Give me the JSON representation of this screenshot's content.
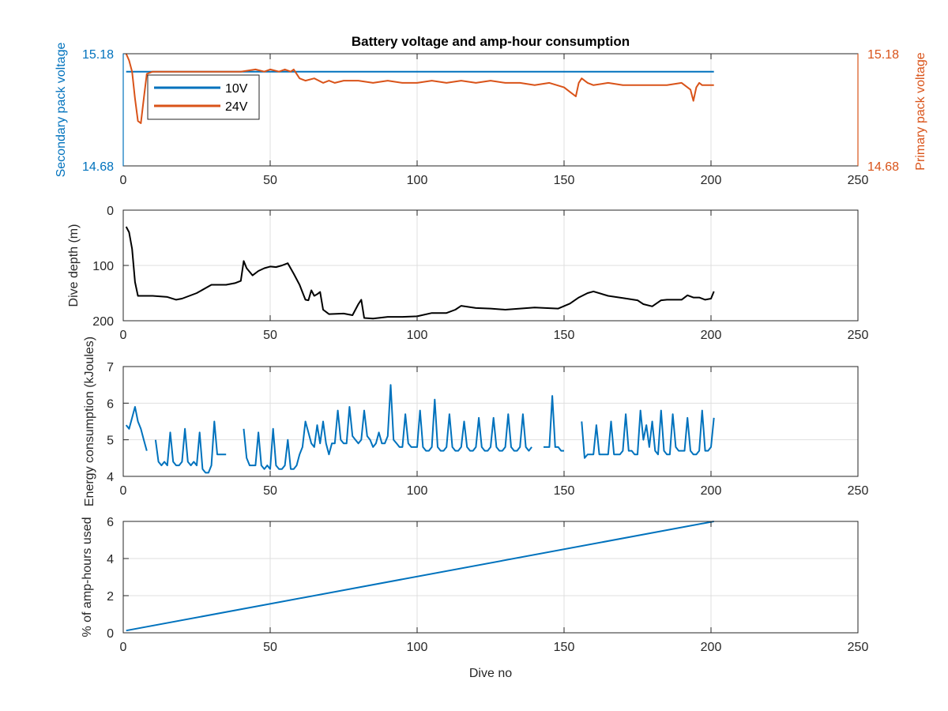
{
  "figure": {
    "title": "Battery voltage and amp-hour consumption",
    "colors": {
      "blue": "#0072BD",
      "orange": "#D95319",
      "black": "#000000",
      "grid": "#DFDFDF",
      "axis": "#262626"
    }
  },
  "chart_data": [
    {
      "id": "voltage",
      "type": "line",
      "title": "Battery voltage and amp-hour consumption",
      "xlim": [
        0,
        250
      ],
      "xticks": [
        0,
        50,
        100,
        150,
        200,
        250
      ],
      "ylim": [
        14.68,
        15.18
      ],
      "ylabel": "Secondary pack voltage",
      "yticks": [
        14.68,
        15.18
      ],
      "ylabel_right": "Primary pack voltage",
      "yticks_right": [
        14.68,
        15.18
      ],
      "legend": {
        "position": "top-left",
        "entries": [
          "10V",
          "24V"
        ]
      },
      "grid": true,
      "series": [
        {
          "name": "10V",
          "color": "#0072BD",
          "axis": "left",
          "x": [
            1,
            201
          ],
          "y": [
            15.1,
            15.1
          ]
        },
        {
          "name": "24V",
          "color": "#D95319",
          "axis": "right",
          "x": [
            1,
            2,
            3,
            4,
            5,
            6,
            7,
            8,
            10,
            15,
            20,
            25,
            30,
            35,
            40,
            45,
            48,
            50,
            53,
            55,
            57,
            58,
            60,
            62,
            65,
            68,
            70,
            72,
            75,
            80,
            85,
            90,
            95,
            100,
            105,
            110,
            115,
            120,
            125,
            130,
            135,
            140,
            145,
            150,
            152,
            154,
            155,
            156,
            158,
            160,
            165,
            170,
            175,
            180,
            185,
            190,
            193,
            194,
            195,
            196,
            197,
            200,
            201
          ],
          "y": [
            15.18,
            15.15,
            15.1,
            14.98,
            14.88,
            14.87,
            14.98,
            15.09,
            15.1,
            15.1,
            15.1,
            15.1,
            15.1,
            15.1,
            15.1,
            15.11,
            15.1,
            15.11,
            15.1,
            15.11,
            15.1,
            15.11,
            15.07,
            15.06,
            15.07,
            15.05,
            15.06,
            15.05,
            15.06,
            15.06,
            15.05,
            15.06,
            15.05,
            15.05,
            15.06,
            15.05,
            15.06,
            15.05,
            15.06,
            15.05,
            15.05,
            15.04,
            15.05,
            15.03,
            15.01,
            14.99,
            15.05,
            15.07,
            15.05,
            15.04,
            15.05,
            15.04,
            15.04,
            15.04,
            15.04,
            15.05,
            15.02,
            14.97,
            15.03,
            15.05,
            15.04,
            15.04,
            15.04
          ]
        }
      ]
    },
    {
      "id": "depth",
      "type": "line",
      "xlim": [
        0,
        250
      ],
      "xticks": [
        0,
        50,
        100,
        150,
        200,
        250
      ],
      "ylim": [
        0,
        200
      ],
      "y_reversed": true,
      "ylabel": "Dive depth (m)",
      "yticks": [
        0,
        100,
        200
      ],
      "grid": true,
      "series": [
        {
          "color": "#000000",
          "x": [
            1,
            2,
            3,
            4,
            5,
            6,
            10,
            15,
            18,
            20,
            25,
            30,
            35,
            38,
            40,
            41,
            42,
            44,
            46,
            48,
            50,
            52,
            54,
            56,
            58,
            60,
            62,
            63,
            64,
            65,
            66,
            67,
            68,
            70,
            75,
            78,
            80,
            81,
            82,
            85,
            90,
            95,
            100,
            105,
            110,
            113,
            115,
            120,
            125,
            130,
            135,
            140,
            148,
            152,
            155,
            158,
            160,
            165,
            170,
            175,
            177,
            180,
            183,
            185,
            190,
            192,
            194,
            196,
            198,
            200,
            201
          ],
          "y": [
            30,
            40,
            70,
            130,
            155,
            155,
            155,
            157,
            162,
            160,
            150,
            135,
            135,
            132,
            128,
            92,
            105,
            118,
            110,
            105,
            102,
            103,
            100,
            96,
            115,
            135,
            162,
            163,
            145,
            155,
            152,
            148,
            180,
            188,
            187,
            190,
            170,
            162,
            195,
            196,
            193,
            193,
            192,
            186,
            186,
            180,
            173,
            177,
            178,
            180,
            178,
            176,
            178,
            169,
            158,
            150,
            147,
            155,
            159,
            163,
            170,
            174,
            163,
            162,
            162,
            154,
            158,
            158,
            162,
            160,
            147
          ]
        }
      ]
    },
    {
      "id": "energy",
      "type": "line",
      "xlim": [
        0,
        250
      ],
      "xticks": [
        0,
        50,
        100,
        150,
        200,
        250
      ],
      "ylim": [
        4,
        7
      ],
      "ylabel": "Energy consumption (kJoules)",
      "yticks": [
        4,
        5,
        6,
        7
      ],
      "grid": true,
      "series": [
        {
          "color": "#0072BD",
          "segments": [
            {
              "x": [
                1,
                2,
                3,
                4,
                5,
                6,
                7,
                8
              ],
              "y": [
                5.4,
                5.3,
                5.6,
                5.9,
                5.5,
                5.3,
                5.0,
                4.7
              ]
            },
            {
              "x": [
                11,
                12,
                13,
                14,
                15,
                16,
                17,
                18,
                19,
                20,
                21,
                22,
                23,
                24,
                25,
                26,
                27,
                28,
                29,
                30,
                31,
                32,
                33,
                34,
                35
              ],
              "y": [
                5.0,
                4.4,
                4.3,
                4.4,
                4.3,
                5.2,
                4.4,
                4.3,
                4.3,
                4.4,
                5.3,
                4.4,
                4.3,
                4.4,
                4.3,
                5.2,
                4.2,
                4.1,
                4.1,
                4.3,
                5.5,
                4.6,
                4.6,
                4.6,
                4.6
              ]
            },
            {
              "x": [
                41,
                42,
                43,
                44,
                45,
                46,
                47,
                48,
                49,
                50,
                51,
                52,
                53,
                54,
                55,
                56,
                57,
                58,
                59,
                60,
                61,
                62,
                63,
                64,
                65,
                66,
                67,
                68,
                69,
                70,
                71,
                72,
                73,
                74,
                75,
                76,
                77,
                78,
                79,
                80,
                81,
                82,
                83,
                84,
                85,
                86,
                87,
                88,
                89,
                90,
                91,
                92,
                93,
                94,
                95,
                96,
                97,
                98,
                99,
                100,
                101,
                102,
                103,
                104,
                105,
                106,
                107,
                108,
                109,
                110,
                111,
                112,
                113,
                114,
                115,
                116,
                117,
                118,
                119,
                120,
                121,
                122,
                123,
                124,
                125,
                126,
                127,
                128,
                129,
                130,
                131,
                132,
                133,
                134,
                135,
                136,
                137,
                138,
                139
              ],
              "y": [
                5.3,
                4.5,
                4.3,
                4.3,
                4.3,
                5.2,
                4.3,
                4.2,
                4.3,
                4.2,
                5.3,
                4.3,
                4.2,
                4.2,
                4.3,
                5.0,
                4.2,
                4.2,
                4.3,
                4.6,
                4.8,
                5.5,
                5.2,
                4.9,
                4.8,
                5.4,
                4.9,
                5.5,
                4.9,
                4.6,
                4.9,
                4.9,
                5.8,
                5.0,
                4.9,
                4.9,
                5.9,
                5.1,
                5.0,
                4.9,
                5.0,
                5.8,
                5.1,
                5.0,
                4.8,
                4.9,
                5.2,
                4.9,
                4.9,
                5.1,
                6.5,
                5.0,
                4.9,
                4.8,
                4.8,
                5.7,
                4.9,
                4.8,
                4.8,
                4.8,
                5.8,
                4.8,
                4.7,
                4.7,
                4.8,
                6.1,
                4.8,
                4.7,
                4.7,
                4.8,
                5.7,
                4.8,
                4.7,
                4.7,
                4.8,
                5.5,
                4.8,
                4.7,
                4.7,
                4.8,
                5.6,
                4.8,
                4.7,
                4.7,
                4.8,
                5.6,
                4.8,
                4.7,
                4.7,
                4.8,
                5.7,
                4.8,
                4.7,
                4.7,
                4.8,
                5.7,
                4.8,
                4.7,
                4.8
              ]
            },
            {
              "x": [
                143,
                144,
                145,
                146,
                147,
                148,
                149,
                150
              ],
              "y": [
                4.8,
                4.8,
                4.8,
                6.2,
                4.8,
                4.8,
                4.7,
                4.7
              ]
            },
            {
              "x": [
                156,
                157,
                158,
                159,
                160,
                161,
                162,
                163,
                164,
                165,
                166,
                167,
                168,
                169,
                170,
                171,
                172,
                173,
                174,
                175,
                176,
                177,
                178,
                179,
                180,
                181,
                182,
                183,
                184,
                185,
                186,
                187,
                188,
                189,
                190,
                191,
                192,
                193,
                194,
                195,
                196,
                197,
                198,
                199,
                200,
                201
              ],
              "y": [
                5.5,
                4.5,
                4.6,
                4.6,
                4.6,
                5.4,
                4.6,
                4.6,
                4.6,
                4.6,
                5.5,
                4.6,
                4.6,
                4.6,
                4.7,
                5.7,
                4.7,
                4.7,
                4.6,
                4.6,
                5.8,
                5.0,
                5.4,
                4.8,
                5.5,
                4.7,
                4.6,
                5.8,
                4.7,
                4.6,
                4.6,
                5.7,
                4.8,
                4.7,
                4.7,
                4.7,
                5.6,
                4.7,
                4.6,
                4.6,
                4.7,
                5.8,
                4.7,
                4.7,
                4.8,
                5.6
              ]
            }
          ]
        }
      ]
    },
    {
      "id": "amphours",
      "type": "line",
      "xlim": [
        0,
        250
      ],
      "xticks": [
        0,
        50,
        100,
        150,
        200,
        250
      ],
      "ylim": [
        0,
        6
      ],
      "ylabel": "% of amp-hours used",
      "xlabel": "Dive no",
      "yticks": [
        0,
        2,
        4,
        6
      ],
      "grid": true,
      "series": [
        {
          "color": "#0072BD",
          "x": [
            1,
            201
          ],
          "y": [
            0.12,
            6.0
          ]
        }
      ]
    }
  ]
}
